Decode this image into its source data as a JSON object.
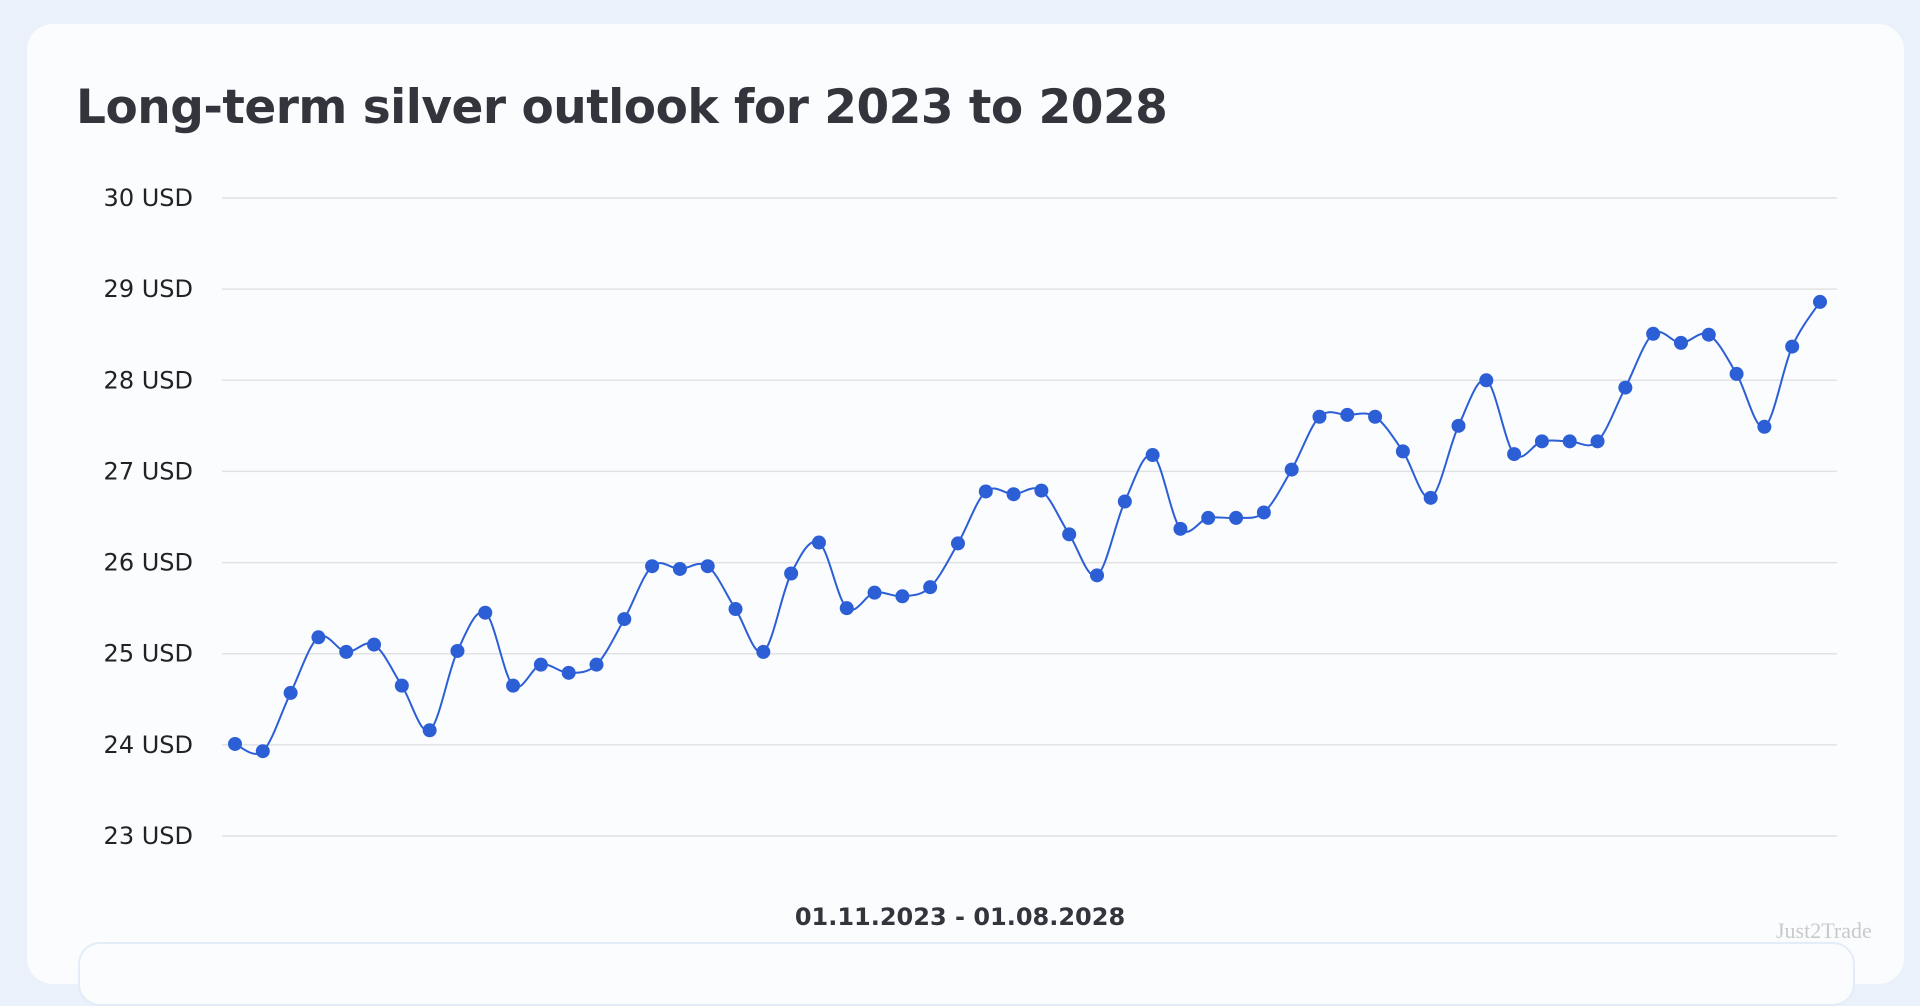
{
  "title": "Long-term silver outlook for 2023 to 2028",
  "watermark": "Just2Trade",
  "colors": {
    "line": "#2c5fd6",
    "grid": "#e2e2e2",
    "background": "#eaf1fb",
    "card": "#fbfcfe"
  },
  "chart_data": {
    "type": "line",
    "title": "Long-term silver outlook for 2023 to 2028",
    "xlabel": "01.11.2023 - 01.08.2028",
    "x_start": "01.11.2023",
    "x_end": "01.08.2028",
    "x_interval": "monthly",
    "ylim": [
      23,
      30
    ],
    "yticks": [
      "23 USD",
      "24 USD",
      "25 USD",
      "26 USD",
      "27 USD",
      "28 USD",
      "29 USD",
      "30 USD"
    ],
    "grid": true,
    "markers": true,
    "smooth": true,
    "values": [
      24.01,
      23.93,
      24.57,
      25.18,
      25.02,
      25.1,
      24.65,
      24.16,
      25.03,
      25.45,
      24.65,
      24.88,
      24.79,
      24.88,
      25.38,
      25.96,
      25.93,
      25.96,
      25.49,
      25.02,
      25.88,
      26.22,
      25.5,
      25.67,
      25.63,
      25.73,
      26.21,
      26.78,
      26.75,
      26.79,
      26.31,
      25.86,
      26.67,
      27.18,
      26.37,
      26.49,
      26.49,
      26.55,
      27.02,
      27.6,
      27.62,
      27.6,
      27.22,
      26.71,
      27.5,
      28.0,
      27.19,
      27.33,
      27.33,
      27.33,
      27.92,
      28.51,
      28.41,
      28.5,
      28.07,
      27.49,
      28.37,
      28.86
    ]
  }
}
